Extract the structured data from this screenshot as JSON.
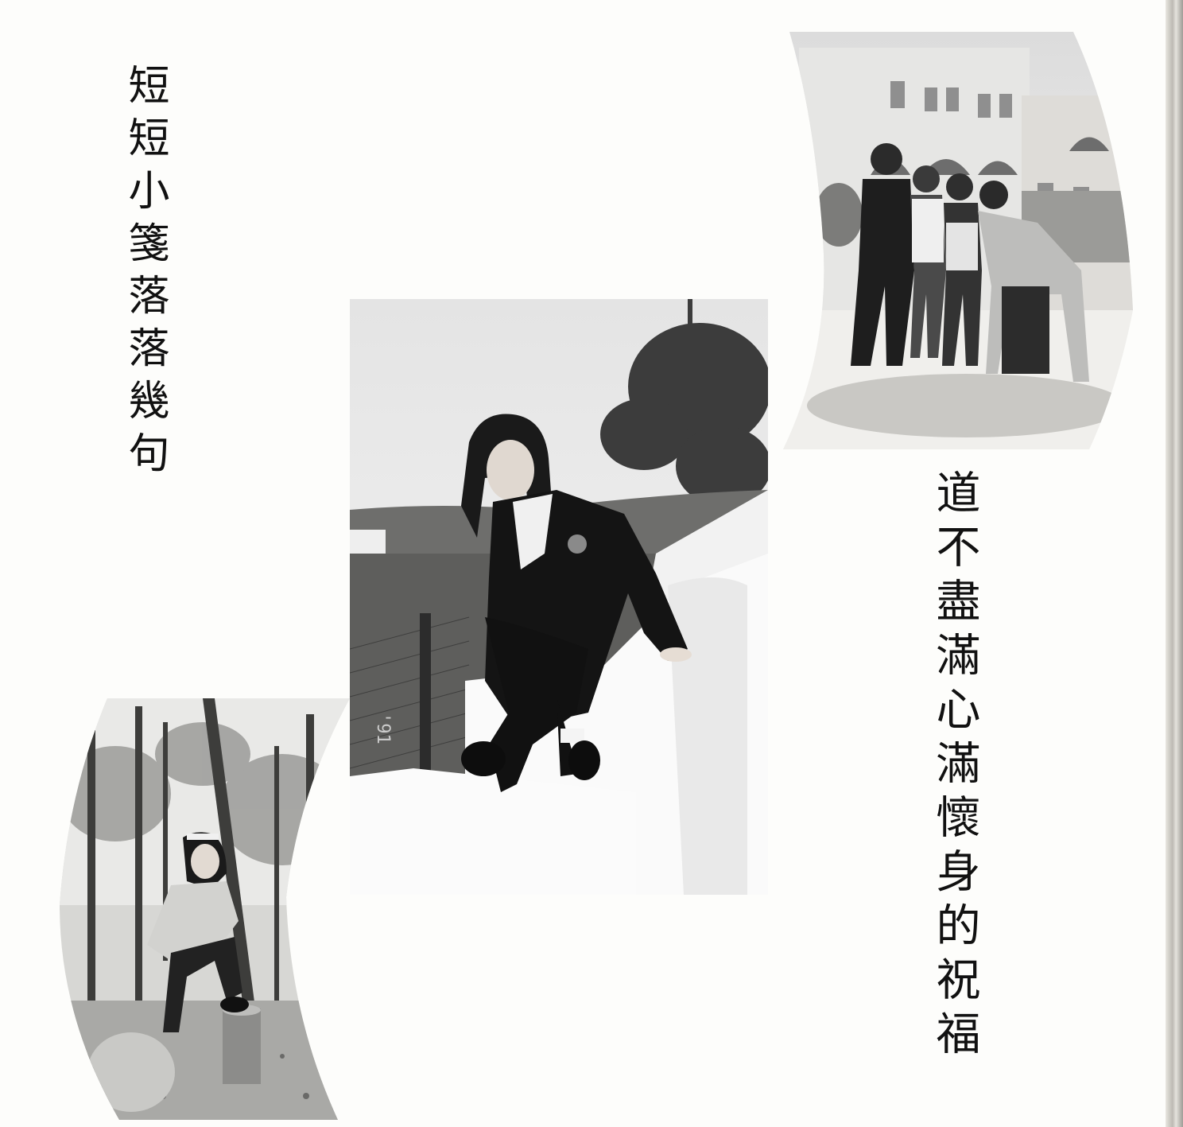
{
  "verses": {
    "left": "短短小箋落落幾句",
    "right": "道不盡滿心滿懷身的祝福"
  },
  "photos": {
    "group": {
      "subject": "four-girls-in-courtyard"
    },
    "center": {
      "subject": "girl-sitting-on-wall",
      "date_stamp": "'91"
    },
    "forest": {
      "subject": "girl-leaning-on-tree-stump"
    }
  },
  "colors": {
    "paper": "#fdfdfb",
    "ink": "#111111"
  }
}
